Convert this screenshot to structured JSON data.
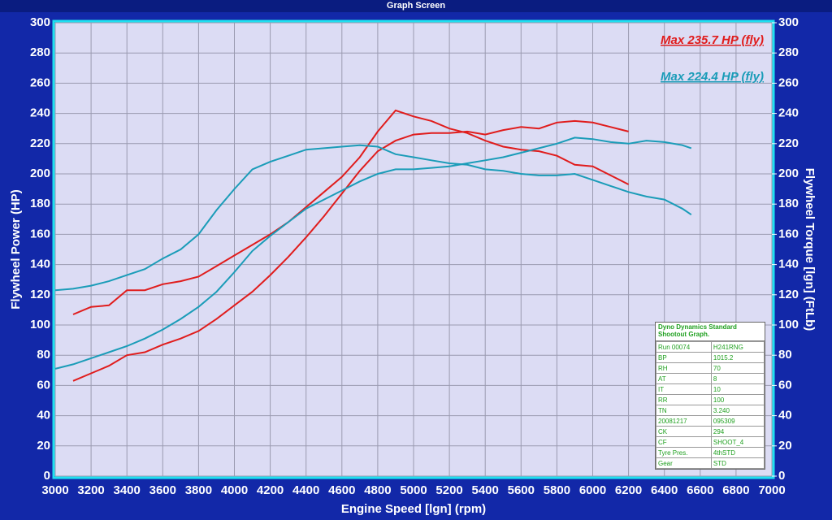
{
  "window_title": "Graph Screen",
  "chart_data": {
    "type": "line",
    "xlabel": "Engine Speed [lgn] (rpm)",
    "ylabel": "Flywheel Power (HP)",
    "y2label": "Flywheel Torque [lgn] (FtLb)",
    "annotations": [
      {
        "text": "Max 235.7 HP (fly)",
        "color": "#e01c1c"
      },
      {
        "text": "Max 224.4 HP (fly)",
        "color": "#1a9cb8"
      }
    ],
    "x": [
      3000,
      3100,
      3200,
      3300,
      3400,
      3500,
      3600,
      3700,
      3800,
      3900,
      4000,
      4100,
      4200,
      4300,
      4400,
      4500,
      4600,
      4700,
      4800,
      4900,
      5000,
      5100,
      5200,
      5300,
      5400,
      5500,
      5600,
      5700,
      5800,
      5900,
      6000,
      6100,
      6200,
      6300,
      6400,
      6500,
      6550
    ],
    "series": [
      {
        "color": "#e01c1c",
        "values": [
          null,
          63,
          68,
          73,
          80,
          82,
          87,
          91,
          96,
          104,
          113,
          122,
          133,
          145,
          158,
          172,
          187,
          202,
          215,
          222,
          226,
          227,
          227,
          228,
          226,
          229,
          231,
          230,
          234,
          235,
          234,
          231,
          228,
          null,
          null,
          null,
          null
        ]
      },
      {
        "color": "#e01c1c",
        "axis": "y2",
        "values": [
          null,
          107,
          112,
          113,
          123,
          123,
          127,
          129,
          132,
          139,
          146,
          153,
          160,
          168,
          178,
          188,
          198,
          211,
          228,
          242,
          238,
          235,
          230,
          227,
          222,
          218,
          216,
          215,
          212,
          206,
          205,
          199,
          193,
          null,
          null,
          null,
          null
        ]
      },
      {
        "color": "#1a9cb8",
        "values": [
          71,
          74,
          78,
          82,
          86,
          91,
          97,
          104,
          112,
          122,
          135,
          149,
          159,
          168,
          177,
          183,
          189,
          195,
          200,
          203,
          203,
          204,
          205,
          207,
          209,
          211,
          214,
          217,
          220,
          224,
          223,
          221,
          220,
          222,
          221,
          219,
          217
        ]
      },
      {
        "color": "#1a9cb8",
        "axis": "y2",
        "values": [
          123,
          124,
          126,
          129,
          133,
          137,
          144,
          150,
          160,
          176,
          190,
          203,
          208,
          212,
          216,
          217,
          218,
          219,
          218,
          213,
          211,
          209,
          207,
          206,
          203,
          202,
          200,
          199,
          199,
          200,
          196,
          192,
          188,
          185,
          183,
          177,
          173
        ]
      }
    ],
    "xlim": [
      3000,
      7000
    ],
    "xticks": [
      3000,
      3200,
      3400,
      3600,
      3800,
      4000,
      4200,
      4400,
      4600,
      4800,
      5000,
      5200,
      5400,
      5600,
      5800,
      6000,
      6200,
      6400,
      6600,
      6800,
      7000
    ],
    "ylim": [
      0,
      300
    ],
    "yticks": [
      0,
      20,
      40,
      60,
      80,
      100,
      120,
      140,
      160,
      180,
      200,
      220,
      240,
      260,
      280,
      300
    ],
    "y2lim": [
      0,
      300
    ],
    "y2ticks": [
      0,
      20,
      40,
      60,
      80,
      100,
      120,
      140,
      160,
      180,
      200,
      220,
      240,
      260,
      280,
      300
    ],
    "grid": true
  },
  "info_table": {
    "title": "Dyno Dynamics Standard Shootout Graph.",
    "rows": [
      [
        "Run 00074",
        "H241RNG"
      ],
      [
        "BP",
        "1015.2"
      ],
      [
        "RH",
        "70"
      ],
      [
        "AT",
        "8"
      ],
      [
        "IT",
        "10"
      ],
      [
        "RR",
        "100"
      ],
      [
        "TN",
        "3.240"
      ],
      [
        "20081217",
        "095309"
      ],
      [
        "CK",
        "294"
      ],
      [
        "CF",
        "SHOOT_4"
      ],
      [
        "Tyre Pres.",
        "4thSTD"
      ],
      [
        "Gear",
        "STD"
      ]
    ]
  }
}
